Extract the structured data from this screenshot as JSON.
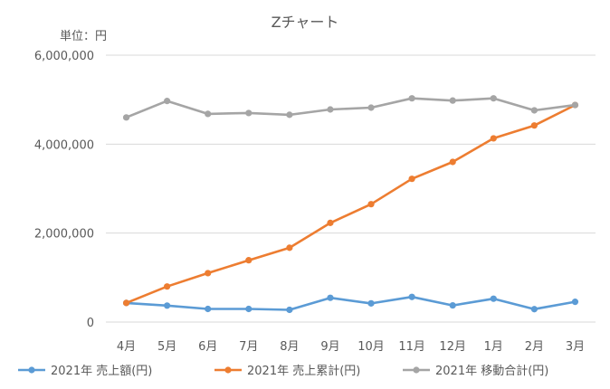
{
  "chart_data": {
    "type": "line",
    "title": "Zチャート",
    "unit_label": "単位：円",
    "categories": [
      "4月",
      "5月",
      "6月",
      "7月",
      "8月",
      "9月",
      "10月",
      "11月",
      "12月",
      "1月",
      "2月",
      "3月"
    ],
    "ylim": [
      0,
      6000000
    ],
    "y_ticks": [
      0,
      2000000,
      4000000,
      6000000
    ],
    "y_tick_labels": [
      "0",
      "2,000,000",
      "4,000,000",
      "6,000,000"
    ],
    "grid": true,
    "legend_position": "bottom",
    "series": [
      {
        "name": "2021年 売上額(円)",
        "color": "#5b9bd5",
        "values": [
          430000,
          370000,
          295000,
          295000,
          275000,
          545000,
          420000,
          565000,
          375000,
          525000,
          290000,
          455000
        ]
      },
      {
        "name": "2021年 売上累計(円)",
        "color": "#ed7d31",
        "values": [
          430000,
          800000,
          1100000,
          1390000,
          1670000,
          2230000,
          2650000,
          3220000,
          3600000,
          4130000,
          4420000,
          4880000
        ]
      },
      {
        "name": "2021年 移動合計(円)",
        "color": "#a5a5a5",
        "values": [
          4600000,
          4970000,
          4680000,
          4700000,
          4660000,
          4780000,
          4820000,
          5030000,
          4980000,
          5030000,
          4760000,
          4880000
        ]
      }
    ]
  }
}
